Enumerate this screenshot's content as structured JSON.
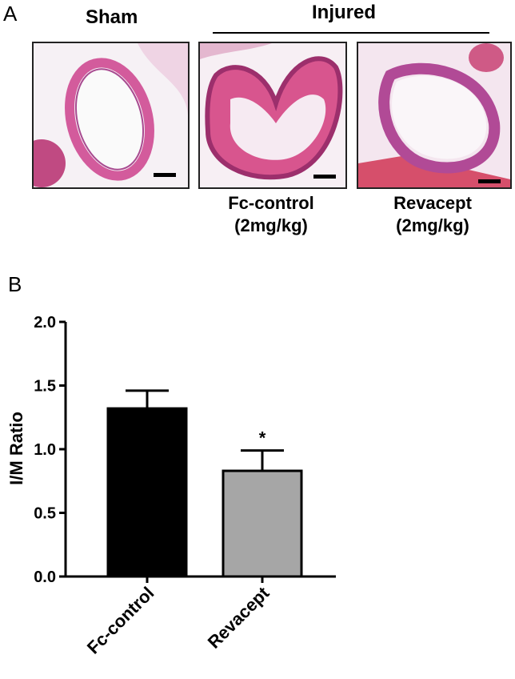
{
  "panel_a": {
    "letter": "A",
    "sham_label": "Sham",
    "injured_label": "Injured",
    "panels": [
      {
        "label_line1": "",
        "label_line2": ""
      },
      {
        "label_line1": "Fc-control",
        "label_line2": "(2mg/kg)"
      },
      {
        "label_line1": "Revacept",
        "label_line2": "(2mg/kg)"
      }
    ],
    "colors": {
      "stain_pink": "#e0609e",
      "stain_purple": "#b04a8f",
      "tissue_light": "#f2d9e8",
      "muscle": "#d8506a"
    }
  },
  "panel_b": {
    "letter": "B"
  },
  "chart_data": {
    "type": "bar",
    "categories": [
      "Fc-control",
      "Revacept"
    ],
    "values": [
      1.32,
      0.83
    ],
    "errors": [
      0.14,
      0.16
    ],
    "bar_colors": [
      "#000000",
      "#a6a6a6"
    ],
    "significance": [
      "",
      "*"
    ],
    "title": "",
    "xlabel": "",
    "ylabel": "I/M Ratio",
    "ylim": [
      0,
      2.0
    ],
    "yticks": [
      "0.0",
      "0.5",
      "1.0",
      "1.5",
      "2.0"
    ],
    "grid": false,
    "legend": "none"
  }
}
